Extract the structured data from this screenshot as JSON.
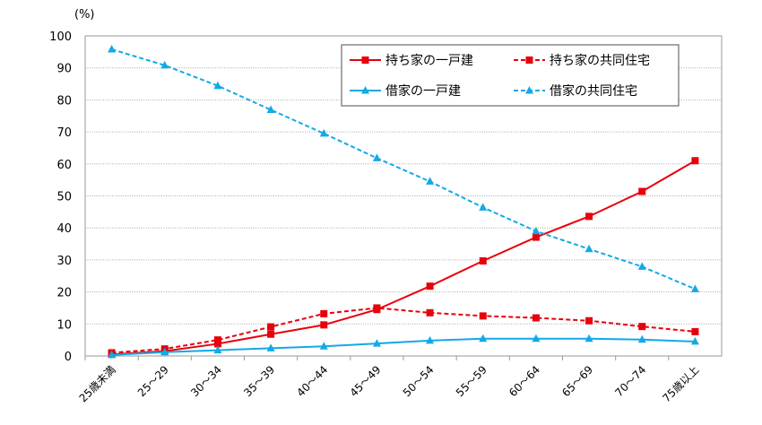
{
  "chart_data": {
    "type": "line",
    "title": "",
    "ylabel": "(%)",
    "xlabel": "",
    "ylim": [
      0,
      100
    ],
    "yticks": [
      0,
      10,
      20,
      30,
      40,
      50,
      60,
      70,
      80,
      90,
      100
    ],
    "grid": true,
    "legend_position": "top-right",
    "categories": [
      "25歳未満",
      "25～29",
      "30～34",
      "35～39",
      "40～44",
      "45～49",
      "50～54",
      "55～59",
      "60～64",
      "65～69",
      "70～74",
      "75歳以上"
    ],
    "series": [
      {
        "name": "持ち家の一戸建",
        "color": "#e8000b",
        "dash": false,
        "marker": "square",
        "values": [
          0.5,
          1.5,
          3.8,
          6.8,
          9.7,
          14.5,
          21.8,
          29.7,
          37.1,
          43.6,
          51.4,
          61.0
        ]
      },
      {
        "name": "持ち家の共同住宅",
        "color": "#e8000b",
        "dash": true,
        "marker": "square",
        "values": [
          1.0,
          2.2,
          5.0,
          9.1,
          13.2,
          15.0,
          13.5,
          12.5,
          11.9,
          11.0,
          9.2,
          7.6
        ]
      },
      {
        "name": "借家の一戸建",
        "color": "#12a9e6",
        "dash": false,
        "marker": "triangle",
        "values": [
          0.3,
          1.2,
          1.8,
          2.4,
          3.0,
          3.9,
          4.8,
          5.4,
          5.4,
          5.4,
          5.1,
          4.5
        ]
      },
      {
        "name": "借家の共同住宅",
        "color": "#12a9e6",
        "dash": true,
        "marker": "triangle",
        "values": [
          95.8,
          90.8,
          84.4,
          76.9,
          69.5,
          61.8,
          54.5,
          46.4,
          39.0,
          33.4,
          27.9,
          20.9
        ]
      }
    ]
  }
}
